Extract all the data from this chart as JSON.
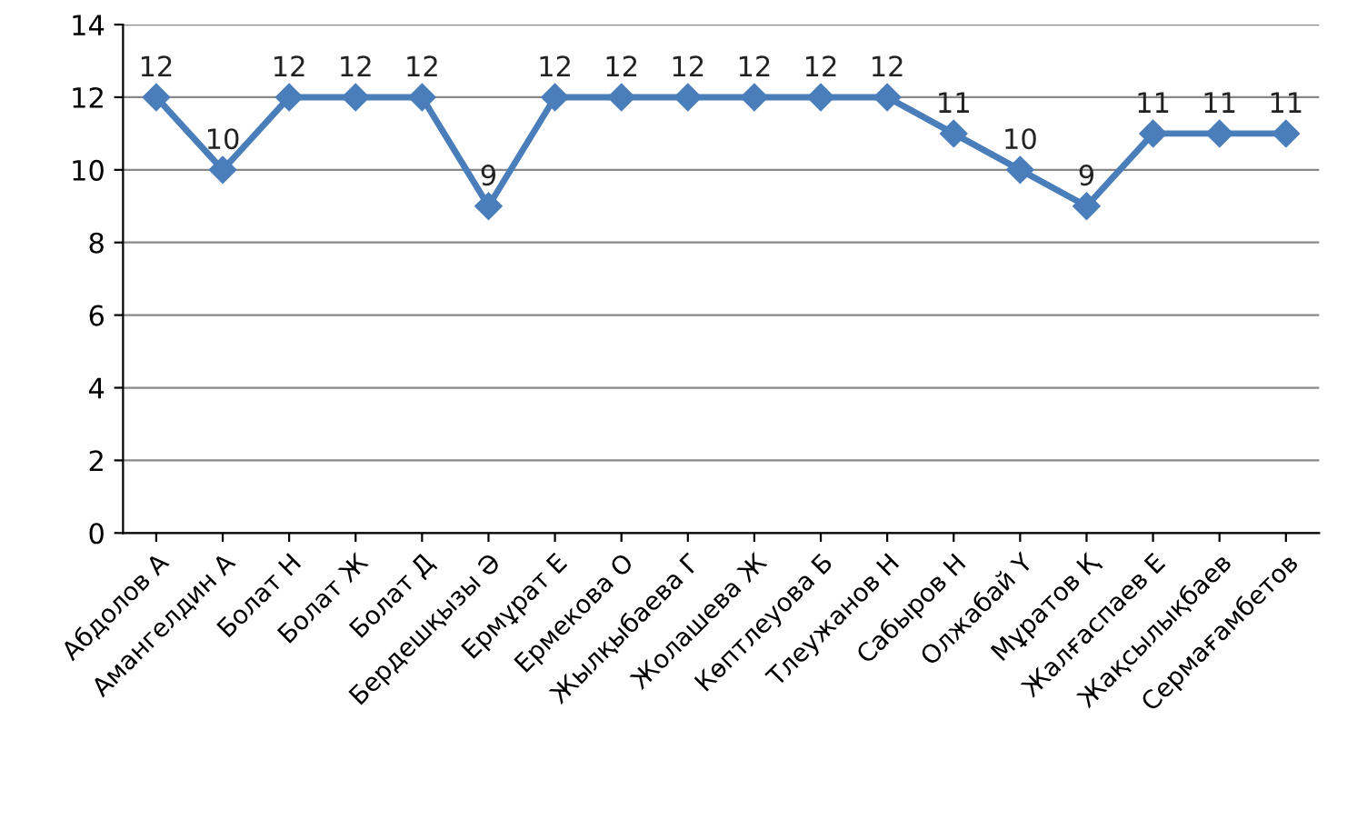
{
  "chart_data": {
    "type": "line",
    "categories": [
      "Абдолов А",
      "Амангелдин А",
      "Болат Н",
      "Болат Ж",
      "Болат Д",
      "Бердешқызы Ә",
      "Ермұрат Е",
      "Ермекова О",
      "Жылқыбаева Г",
      "Жолашева Ж",
      "Көптлеуова Б",
      "Тлеужанов Н",
      "Сабыров Н",
      "Олжабай Ү",
      "Мұратов Қ",
      "Жалғаспаев Е",
      "Жақсылықбаев",
      "Сермағамбетов"
    ],
    "series": [
      {
        "color": "#4a7ebb",
        "values": [
          12,
          10,
          12,
          12,
          12,
          9,
          12,
          12,
          12,
          12,
          12,
          12,
          11,
          10,
          9,
          11,
          11,
          11
        ]
      }
    ],
    "ylim": [
      0,
      14
    ],
    "yticks": [
      0,
      2,
      4,
      6,
      8,
      10,
      12,
      14
    ],
    "grid": "y",
    "marker": "diamond",
    "line_style": "solid",
    "data_labels": true,
    "legend": false
  }
}
